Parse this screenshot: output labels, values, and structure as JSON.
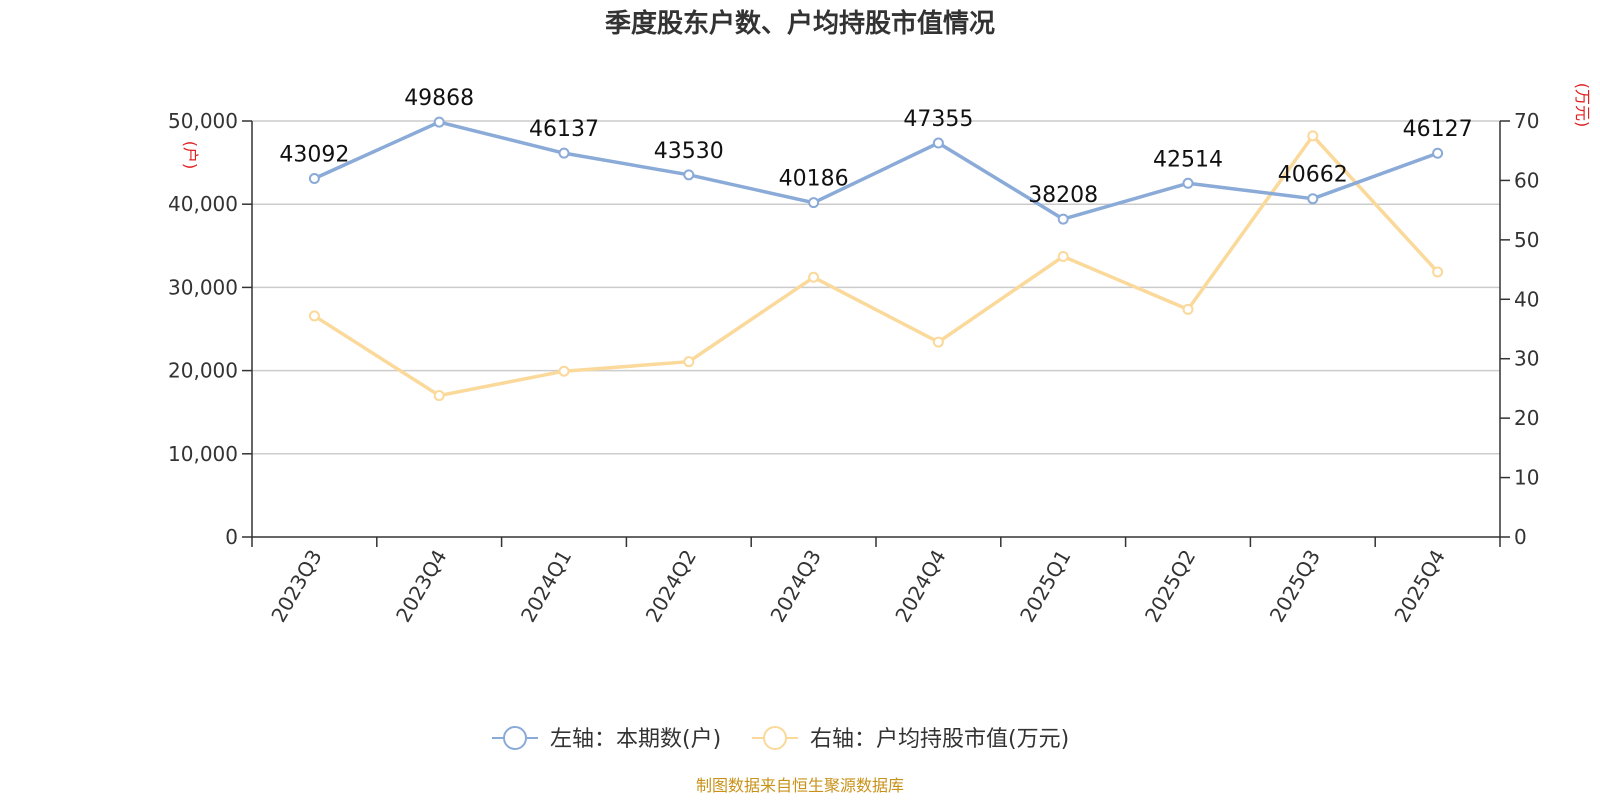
{
  "colors": {
    "series_left": "#8aaad8",
    "series_right": "#fad99a",
    "unit_label": "#e02020",
    "source": "#c8921a",
    "grid": "#cccccc",
    "axis": "#333333"
  },
  "chart_data": {
    "type": "line",
    "title": "季度股东户数、户均持股市值情况",
    "categories": [
      "2023Q3",
      "2023Q4",
      "2024Q1",
      "2024Q2",
      "2024Q3",
      "2024Q4",
      "2025Q1",
      "2025Q2",
      "2025Q3",
      "2025Q4"
    ],
    "series": [
      {
        "name": "左轴：本期数(户)",
        "axis": "left",
        "values": [
          43092,
          49868,
          46137,
          43530,
          40186,
          47355,
          38208,
          42514,
          40662,
          46127
        ],
        "data_labels": [
          "43092",
          "49868",
          "46137",
          "43530",
          "40186",
          "47355",
          "38208",
          "42514",
          "40662",
          "46127"
        ]
      },
      {
        "name": "右轴：户均持股市值(万元)",
        "axis": "right",
        "values": [
          37.2,
          23.8,
          27.9,
          29.5,
          43.7,
          32.8,
          47.2,
          38.3,
          67.5,
          44.6
        ]
      }
    ],
    "y_left": {
      "label": "(户)",
      "ylim": [
        0,
        50000
      ],
      "ticks": [
        0,
        10000,
        20000,
        30000,
        40000,
        50000
      ],
      "tick_labels": [
        "0",
        "10,000",
        "20,000",
        "30,000",
        "40,000",
        "50,000"
      ]
    },
    "y_right": {
      "label": "(万元)",
      "ylim": [
        0,
        70
      ],
      "ticks": [
        0,
        10,
        20,
        30,
        40,
        50,
        60,
        70
      ],
      "tick_labels": [
        "0",
        "10",
        "20",
        "30",
        "40",
        "50",
        "60",
        "70"
      ]
    },
    "grid": true,
    "legend_position": "bottom-center",
    "source": "制图数据来自恒生聚源数据库"
  }
}
